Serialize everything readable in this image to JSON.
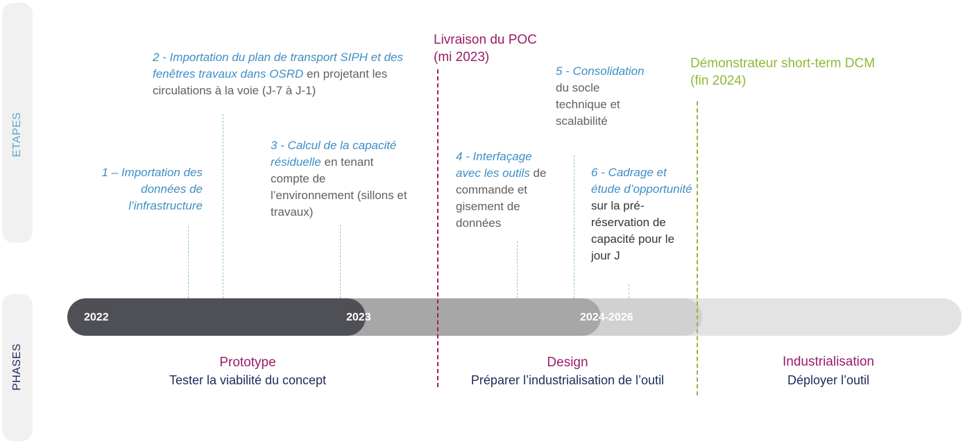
{
  "sidebar": {
    "etapes_label": "ETAPES",
    "phases_label": "PHASES"
  },
  "milestones": {
    "poc": {
      "line1": "Livraison du POC",
      "line2": "(mi 2023)"
    },
    "dcm": {
      "line1": "Démonstrateur short-term DCM",
      "line2": "(fin 2024)"
    }
  },
  "steps": {
    "s1": {
      "em": "1 – Importation des données de l’infrastructure"
    },
    "s2": {
      "em": "2 - Importation du plan de transport SIPH et des fenêtres travaux dans OSRD",
      "rest": " en projetant les circulations à la voie (J-7 à J-1)"
    },
    "s3": {
      "em": "3 - Calcul de la capacité résiduelle",
      "rest": " en tenant compte de l’environnement (sillons et travaux)"
    },
    "s4": {
      "em": "4 - Interfaçage avec les outils",
      "rest": " de commande et gisement de données"
    },
    "s5": {
      "em": "5 - Consolidation",
      "rest": " du socle technique et scalabilité"
    },
    "s6": {
      "em": "6 - Cadrage et étude d’opportunité",
      "rest": " sur la pré-réservation de capacité pour le jour J"
    }
  },
  "timeline": {
    "y2022": "2022",
    "y2023": "2023",
    "y2024": "2024-2026"
  },
  "phases": [
    {
      "title": "Prototype",
      "subtitle": "Tester la viabilité du concept"
    },
    {
      "title": "Design",
      "subtitle": "Préparer l’industrialisation de l’outil"
    },
    {
      "title": "Industrialisation",
      "subtitle": "Déployer l’outil"
    }
  ],
  "colors": {
    "step_blue": "#3e8ec4",
    "poc_magenta": "#9b1b67",
    "dcm_green": "#8fb935",
    "phase_magenta": "#9b1b67",
    "phase_navy": "#1d2a5a",
    "bar_dark": "#4f5055",
    "bar_mid": "#a7a7a7",
    "bar_light": "#d1d1d1",
    "bar_lightest": "#e3e3e3"
  }
}
